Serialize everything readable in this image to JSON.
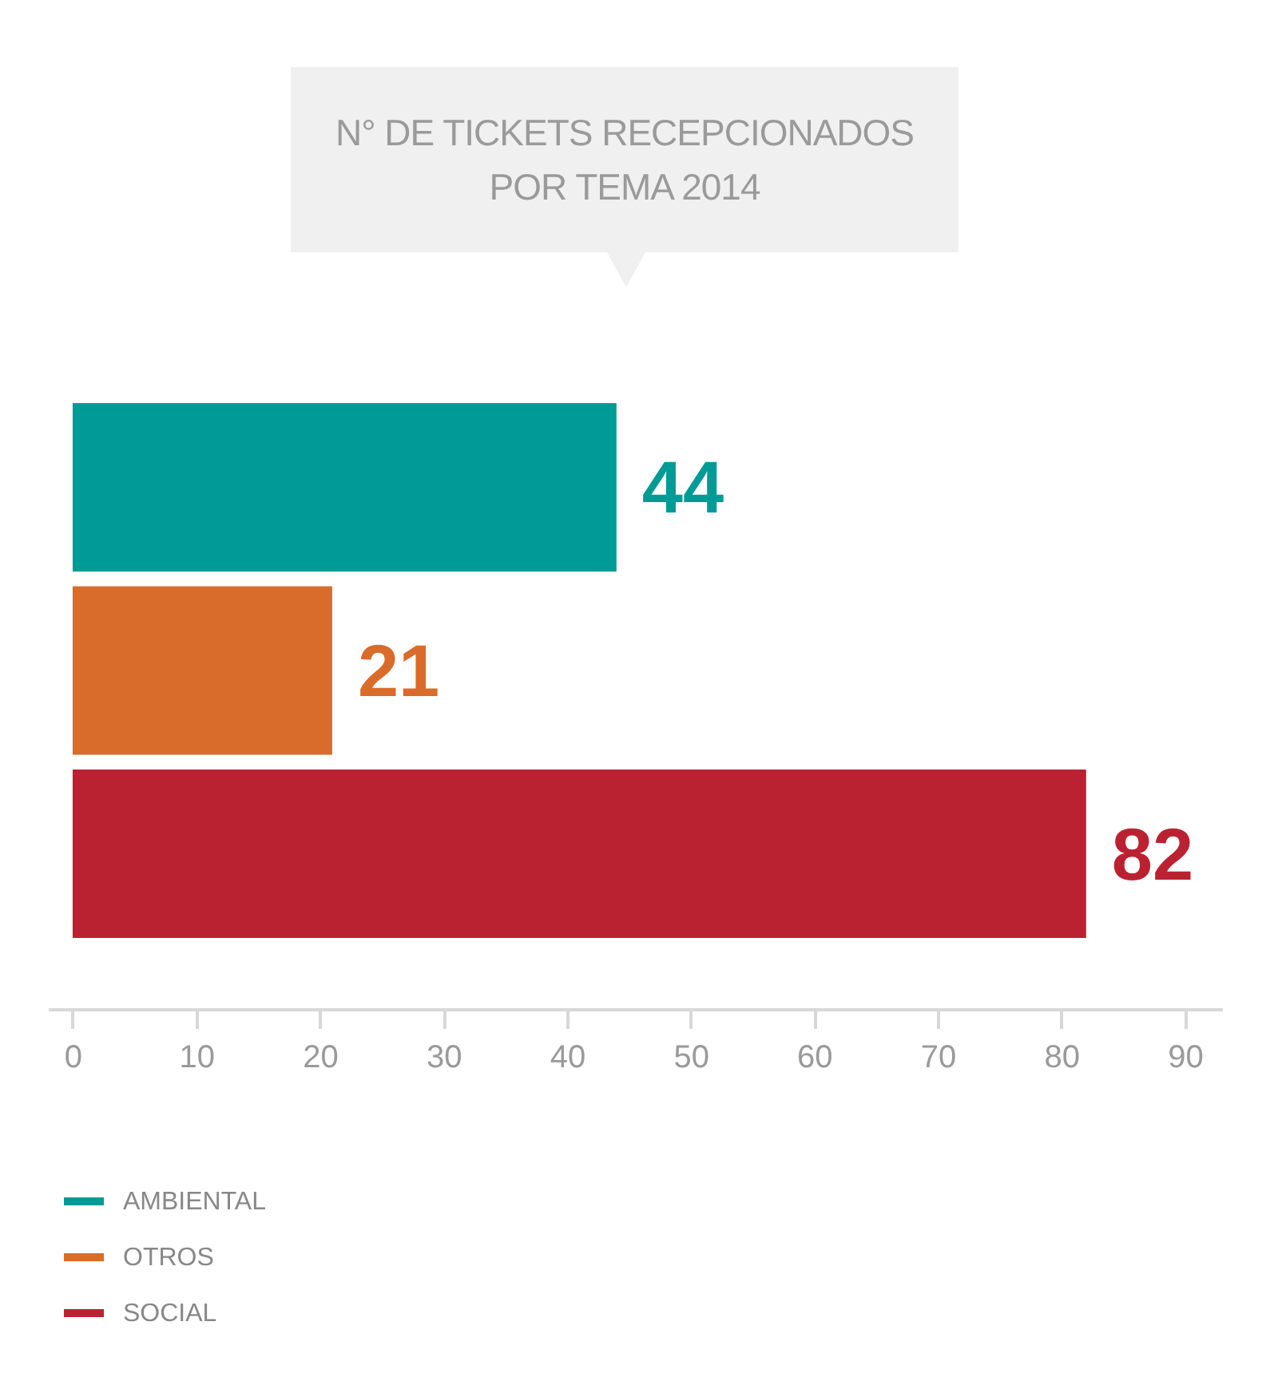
{
  "chart_data": {
    "type": "bar",
    "orientation": "horizontal",
    "title": "N° DE TICKETS RECEPCIONADOS\nPOR TEMA 2014",
    "categories": [
      null
    ],
    "series": [
      {
        "name": "AMBIENTAL",
        "color": "#009b96",
        "values": [
          44
        ]
      },
      {
        "name": "OTROS",
        "color": "#d96b2b",
        "values": [
          21
        ]
      },
      {
        "name": "SOCIAL",
        "color": "#bb2231",
        "values": [
          82
        ]
      }
    ],
    "xlim": [
      -2,
      93
    ],
    "xticks": [
      0,
      10,
      20,
      30,
      40,
      50,
      60,
      70,
      80,
      90
    ],
    "tick_labels": "x",
    "grid": false,
    "legend": "bottom left",
    "data_labels": true
  }
}
